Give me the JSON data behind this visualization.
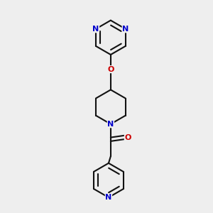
{
  "background_color": "#eeeeee",
  "bond_color": "#111111",
  "nitrogen_color": "#0000cc",
  "oxygen_color": "#cc0000",
  "bond_width": 1.5,
  "figsize": [
    3.0,
    3.0
  ],
  "dpi": 100,
  "xlim": [
    0,
    1
  ],
  "ylim": [
    0,
    1
  ]
}
